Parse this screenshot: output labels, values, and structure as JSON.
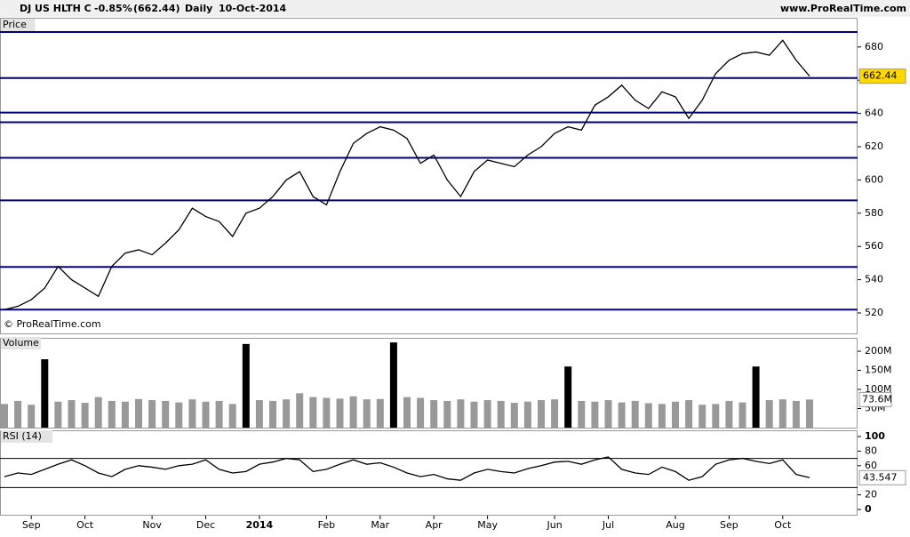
{
  "header": {
    "symbol": "DJ US HLTH C",
    "change": "-0.85%",
    "price_text": "(662.44)",
    "period": "Daily",
    "date": "10-Oct-2014",
    "site": "www.ProRealTime.com",
    "copyright": "© ProRealTime.com"
  },
  "chart_data": [
    {
      "type": "line",
      "title": "Price",
      "color": "#000000",
      "level_color": "#000080",
      "ylim": [
        507.7,
        689
      ],
      "yticks": [
        520,
        540,
        560,
        580,
        600,
        620,
        640,
        660,
        680
      ],
      "levels": [
        689,
        661.3,
        640.5,
        634.7,
        613.3,
        587.7,
        547.7,
        522
      ],
      "series": [
        {
          "name": "DJ US HLTH C",
          "values": [
            522,
            524,
            528,
            535,
            548,
            540,
            535,
            530,
            548,
            556,
            558,
            555,
            562,
            570,
            583,
            578,
            575,
            566,
            580,
            583,
            590,
            600,
            605,
            590,
            585,
            605,
            622,
            628,
            632,
            630,
            625,
            610,
            615,
            600,
            590,
            605,
            612,
            610,
            608,
            615,
            620,
            628,
            632,
            630,
            645,
            650,
            657,
            648,
            643,
            653,
            650,
            637,
            648,
            664,
            672,
            676,
            677,
            675,
            684,
            672,
            662.44
          ]
        }
      ]
    },
    {
      "type": "bar",
      "title": "Volume",
      "color": "#999999",
      "ylim": [
        0,
        235
      ],
      "yticks": [
        {
          "value": 50,
          "label": "50M"
        },
        {
          "value": 100,
          "label": "100M"
        },
        {
          "value": 150,
          "label": "150M"
        },
        {
          "value": 200,
          "label": "200M"
        }
      ],
      "last_value_label": "73.6M",
      "values": [
        62,
        70,
        60,
        179,
        68,
        72,
        65,
        80,
        70,
        68,
        75,
        72,
        70,
        66,
        74,
        68,
        70,
        62,
        219,
        72,
        70,
        74,
        90,
        80,
        78,
        76,
        82,
        74,
        75,
        223,
        80,
        78,
        72,
        70,
        74,
        68,
        72,
        70,
        65,
        68,
        72,
        74,
        160,
        70,
        68,
        72,
        66,
        70,
        64,
        62,
        68,
        72,
        60,
        62,
        70,
        66,
        160,
        72,
        74,
        70,
        73.6
      ]
    },
    {
      "type": "line",
      "title": "RSI (14)",
      "color": "#000000",
      "level_color": "#000000",
      "ylim": [
        -8.5,
        108.5
      ],
      "yticks": [
        0,
        20,
        60,
        80,
        100
      ],
      "levels": [
        70,
        30
      ],
      "categories": [
        null,
        null,
        "Sep",
        null,
        null,
        null,
        "Oct",
        null,
        null,
        null,
        null,
        "Nov",
        null,
        null,
        null,
        "Dec",
        null,
        null,
        null,
        "2014",
        null,
        null,
        null,
        null,
        "Feb",
        null,
        null,
        null,
        "Mar",
        null,
        null,
        null,
        "Apr",
        null,
        null,
        null,
        "May",
        null,
        null,
        null,
        null,
        "Jun",
        null,
        null,
        null,
        "Jul",
        null,
        null,
        null,
        null,
        "Aug",
        null,
        null,
        null,
        "Sep",
        null,
        null,
        null,
        "Oct",
        null,
        null
      ],
      "series": [
        {
          "name": "RSI (14)",
          "values": [
            45,
            50,
            48,
            55,
            62,
            68,
            60,
            50,
            45,
            55,
            60,
            58,
            55,
            60,
            62,
            68,
            55,
            50,
            52,
            62,
            65,
            70,
            68,
            52,
            55,
            62,
            68,
            62,
            64,
            58,
            50,
            45,
            48,
            42,
            40,
            50,
            55,
            52,
            50,
            56,
            60,
            65,
            66,
            62,
            68,
            72,
            55,
            50,
            48,
            58,
            52,
            40,
            45,
            62,
            68,
            70,
            66,
            63,
            68,
            48,
            43.547
          ]
        }
      ]
    }
  ]
}
